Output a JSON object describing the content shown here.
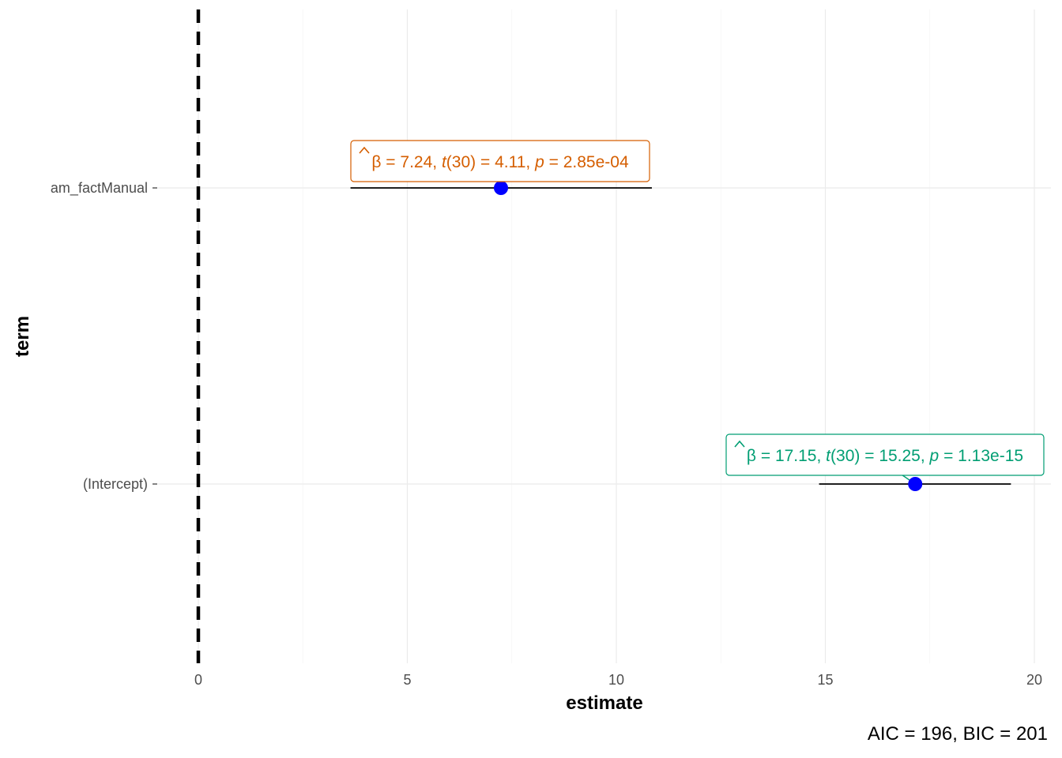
{
  "chart_data": {
    "type": "scatter",
    "subtype": "coefficient-forest-plot",
    "xlabel": "estimate",
    "ylabel": "term",
    "xlim": [
      -0.3,
      20.5
    ],
    "x_ticks": [
      0,
      5,
      10,
      15,
      20
    ],
    "x_tick_labels": [
      "0",
      "5",
      "10",
      "15",
      "20"
    ],
    "grid": true,
    "reference_line": {
      "x": 0,
      "style": "dashed",
      "color": "#000000"
    },
    "terms": [
      {
        "term": "am_factManual",
        "estimate": 7.24,
        "conf_low": 3.64,
        "conf_high": 10.85,
        "label": {
          "beta": "7.24",
          "df": "30",
          "t": "4.11",
          "p": "2.85e-04",
          "color": "#D55E00"
        }
      },
      {
        "term": "(Intercept)",
        "estimate": 17.15,
        "conf_low": 14.85,
        "conf_high": 19.44,
        "label": {
          "beta": "17.15",
          "df": "30",
          "t": "15.25",
          "p": "1.13e-15",
          "color": "#009E73"
        }
      }
    ],
    "point_color": "#0000FF",
    "caption": {
      "aic": "196",
      "bic": "201"
    }
  }
}
